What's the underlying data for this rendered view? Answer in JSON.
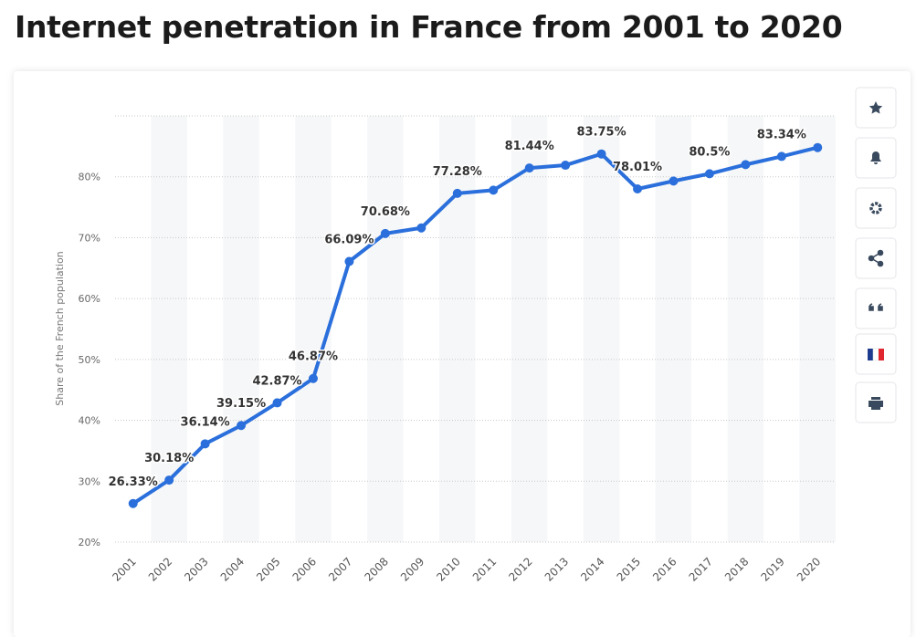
{
  "chart_data": {
    "type": "line",
    "title": "Internet penetration in France from 2001 to 2020",
    "y_axis_label": "Share of the French population",
    "categories": [
      "2001",
      "2002",
      "2003",
      "2004",
      "2005",
      "2006",
      "2007",
      "2008",
      "2009",
      "2010",
      "2011",
      "2012",
      "2013",
      "2014",
      "2015",
      "2016",
      "2017",
      "2018",
      "2019",
      "2020"
    ],
    "series": [
      {
        "name": "Share of the French population",
        "color": "#2a6fdb",
        "values": [
          26.33,
          30.18,
          36.14,
          39.15,
          42.87,
          46.87,
          66.09,
          70.68,
          71.6,
          77.28,
          77.8,
          81.44,
          81.9,
          83.75,
          78.01,
          79.3,
          80.5,
          82.0,
          83.34,
          84.8
        ],
        "value_labels": [
          "26.33%",
          "30.18%",
          "36.14%",
          "39.15%",
          "42.87%",
          "46.87%",
          "66.09%",
          "70.68%",
          null,
          "77.28%",
          null,
          "81.44%",
          null,
          "83.75%",
          "78.01%",
          null,
          "80.5%",
          null,
          "83.34%",
          null
        ]
      }
    ],
    "ylim": [
      20,
      90
    ],
    "yticks": [
      {
        "value": 20,
        "label": "20%"
      },
      {
        "value": 30,
        "label": "30%"
      },
      {
        "value": 40,
        "label": "40%"
      },
      {
        "value": 50,
        "label": "50%"
      },
      {
        "value": 60,
        "label": "60%"
      },
      {
        "value": 70,
        "label": "70%"
      },
      {
        "value": 80,
        "label": "80%"
      }
    ],
    "grid": true
  }
}
